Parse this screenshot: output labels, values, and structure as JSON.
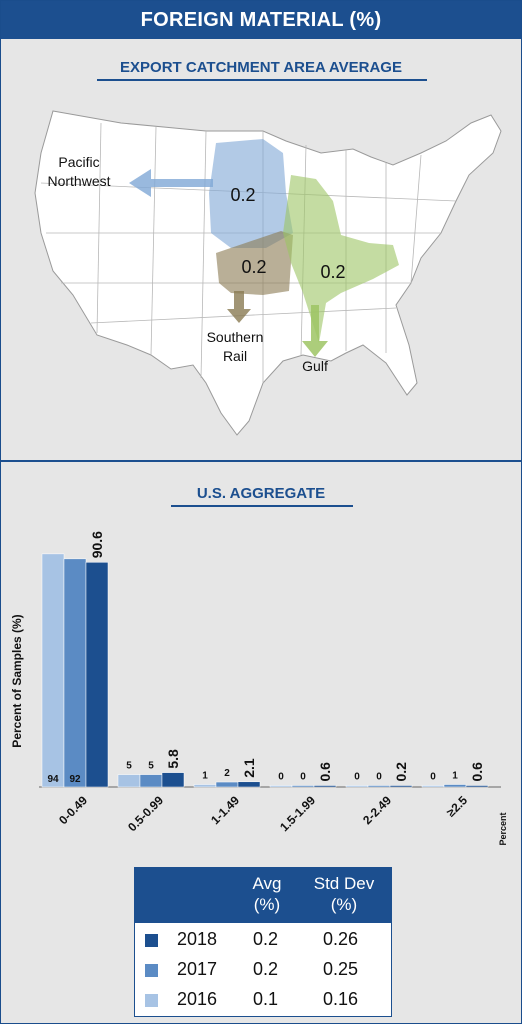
{
  "header": {
    "title": "FOREIGN MATERIAL (%)"
  },
  "map": {
    "subtitle": "EXPORT CATCHMENT AREA AVERAGE",
    "regions": [
      {
        "name": "Pacific Northwest",
        "line1": "Pacific",
        "line2": "Northwest",
        "value": "0.2",
        "color": "#7fa7d6"
      },
      {
        "name": "Southern Rail",
        "line1": "Southern",
        "line2": "Rail",
        "value": "0.2",
        "color": "#8a7a52"
      },
      {
        "name": "Gulf",
        "line1": "Gulf",
        "line2": "",
        "value": "0.2",
        "color": "#9dc464"
      }
    ]
  },
  "chart": {
    "subtitle": "U.S. AGGREGATE"
  },
  "chart_data": {
    "type": "bar",
    "title": "U.S. AGGREGATE",
    "ylabel": "Percent of Samples (%)",
    "xlabel": "Percent",
    "ylim": [
      0,
      100
    ],
    "categories": [
      "0-0.49",
      "0.5-0.99",
      "1-1.49",
      "1.5-1.99",
      "2-2.49",
      "≥2.5"
    ],
    "series": [
      {
        "name": "2016",
        "color": "#a7c3e4",
        "values": [
          94,
          5,
          1,
          0,
          0,
          0
        ]
      },
      {
        "name": "2017",
        "color": "#5b8bc4",
        "values": [
          92,
          5,
          2,
          0,
          0,
          1
        ]
      },
      {
        "name": "2018",
        "color": "#1c4f8f",
        "values": [
          90.6,
          5.8,
          2.1,
          0.6,
          0.2,
          0.6
        ]
      }
    ]
  },
  "legend": {
    "col_avg": "Avg",
    "col_avg_unit": "(%)",
    "col_sd": "Std Dev",
    "col_sd_unit": "(%)",
    "rows": [
      {
        "year": "2018",
        "avg": "0.2",
        "sd": "0.26",
        "color": "#1c4f8f"
      },
      {
        "year": "2017",
        "avg": "0.2",
        "sd": "0.25",
        "color": "#5b8bc4"
      },
      {
        "year": "2016",
        "avg": "0.1",
        "sd": "0.16",
        "color": "#a7c3e4"
      }
    ]
  }
}
